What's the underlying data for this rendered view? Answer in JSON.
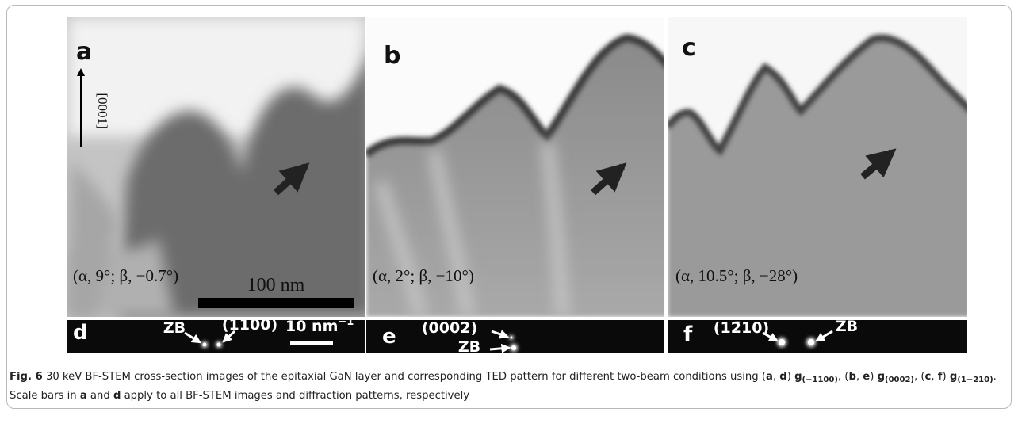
{
  "panel_a": {
    "label": "a",
    "axis": "[0001]",
    "angles": "(α, 9°; β, −0.7°)",
    "scale_bar": "100 nm"
  },
  "panel_b": {
    "label": "b",
    "angles": "(α, 2°; β, −10°)"
  },
  "panel_c": {
    "label": "c",
    "angles": "(α, 10.5°; β, −28°)"
  },
  "panel_d": {
    "label": "d",
    "spot_labels": [
      "ZB",
      "(1̄100)"
    ],
    "scale_bar": "10 nm",
    "scale_bar_exponent": "−1"
  },
  "panel_e": {
    "label": "e",
    "spot_labels": [
      "(0002)",
      "ZB"
    ]
  },
  "panel_f": {
    "label": "f",
    "spot_labels": [
      "(12̄10)",
      "ZB"
    ]
  },
  "caption": [
    "Fig. 6",
    " 30 keV BF-STEM cross-section images of the epitaxial GaN layer and corresponding TED pattern for different two-beam conditions using (",
    "a",
    ", ",
    "d",
    ") ",
    "g",
    "(−1100)",
    ", (",
    "b",
    ", ",
    "e",
    ") ",
    "g",
    "(0002)",
    ", (",
    "c",
    ", ",
    "f",
    ") ",
    "g",
    "(1−210)",
    ". Scale bars in ",
    "a",
    " and ",
    "d",
    " apply to all BF-STEM images and diffraction patterns, respectively"
  ]
}
